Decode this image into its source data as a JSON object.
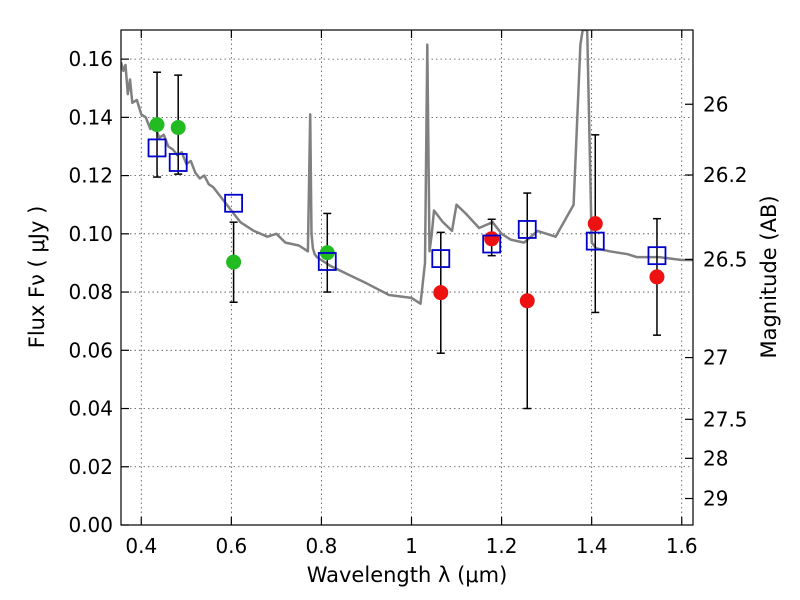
{
  "chart_data": {
    "type": "scatter",
    "xlabel": "Wavelength  λ (μm)",
    "ylabel_left": "Flux  Fν  ( μJy )",
    "ylabel_right": "Magnitude (AB)",
    "xlim": [
      0.355,
      1.625
    ],
    "ylim": [
      0.0,
      0.17
    ],
    "x_ticks": [
      0.4,
      0.6,
      0.8,
      1.0,
      1.2,
      1.4,
      1.6
    ],
    "x_tick_labels": [
      "0.4",
      "0.6",
      "0.8",
      "1",
      "1.2",
      "1.4",
      "1.6"
    ],
    "y_ticks": [
      0.0,
      0.02,
      0.04,
      0.06,
      0.08,
      0.1,
      0.12,
      0.14,
      0.16
    ],
    "y_tick_labels": [
      "0.00",
      "0.02",
      "0.04",
      "0.06",
      "0.08",
      "0.10",
      "0.12",
      "0.14",
      "0.16"
    ],
    "right_ticks": [
      {
        "label": "26",
        "flux": 0.1445
      },
      {
        "label": "26.2",
        "flux": 0.1202
      },
      {
        "label": "26.5",
        "flux": 0.0912
      },
      {
        "label": "27",
        "flux": 0.0575
      },
      {
        "label": "27.5",
        "flux": 0.0363
      },
      {
        "label": "28",
        "flux": 0.0229
      },
      {
        "label": "29",
        "flux": 0.0091
      }
    ],
    "grid": true,
    "colors": {
      "green": "#22bb22",
      "red": "#ee1111",
      "blue": "#0000cc",
      "model": "#808080",
      "errorbar": "#000000"
    },
    "model_spectrum": {
      "name": "template SED",
      "x": [
        0.355,
        0.36,
        0.365,
        0.37,
        0.375,
        0.38,
        0.39,
        0.4,
        0.41,
        0.42,
        0.43,
        0.44,
        0.45,
        0.46,
        0.47,
        0.48,
        0.49,
        0.5,
        0.51,
        0.52,
        0.53,
        0.54,
        0.55,
        0.56,
        0.58,
        0.6,
        0.62,
        0.65,
        0.68,
        0.7,
        0.72,
        0.75,
        0.77,
        0.775,
        0.778,
        0.781,
        0.785,
        0.79,
        0.82,
        0.86,
        0.9,
        0.95,
        1.0,
        1.02,
        1.03,
        1.035,
        1.04,
        1.045,
        1.05,
        1.07,
        1.09,
        1.1,
        1.12,
        1.15,
        1.18,
        1.2,
        1.22,
        1.25,
        1.28,
        1.32,
        1.36,
        1.375,
        1.38,
        1.383,
        1.386,
        1.39,
        1.4,
        1.41,
        1.44,
        1.48,
        1.5,
        1.55,
        1.6,
        1.625
      ],
      "y": [
        0.159,
        0.156,
        0.158,
        0.148,
        0.153,
        0.145,
        0.146,
        0.141,
        0.14,
        0.136,
        0.137,
        0.133,
        0.134,
        0.13,
        0.129,
        0.127,
        0.128,
        0.124,
        0.125,
        0.121,
        0.119,
        0.12,
        0.117,
        0.116,
        0.112,
        0.108,
        0.104,
        0.101,
        0.099,
        0.1,
        0.097,
        0.096,
        0.094,
        0.141,
        0.1,
        0.095,
        0.093,
        0.092,
        0.089,
        0.086,
        0.083,
        0.079,
        0.078,
        0.076,
        0.09,
        0.165,
        0.094,
        0.1,
        0.108,
        0.104,
        0.101,
        0.11,
        0.107,
        0.102,
        0.104,
        0.1,
        0.098,
        0.097,
        0.101,
        0.099,
        0.11,
        0.165,
        0.17,
        0.17,
        0.17,
        0.17,
        0.097,
        0.095,
        0.094,
        0.093,
        0.092,
        0.092,
        0.091,
        0.091
      ]
    },
    "series": [
      {
        "name": "green points",
        "marker": "circle",
        "points": [
          {
            "x": 0.435,
            "y": 0.1375
          },
          {
            "x": 0.482,
            "y": 0.1365
          },
          {
            "x": 0.605,
            "y": 0.0903
          },
          {
            "x": 0.813,
            "y": 0.0935
          }
        ]
      },
      {
        "name": "red points",
        "marker": "circle",
        "points": [
          {
            "x": 1.065,
            "y": 0.0798
          },
          {
            "x": 1.178,
            "y": 0.0983
          },
          {
            "x": 1.257,
            "y": 0.077
          },
          {
            "x": 1.408,
            "y": 0.1035
          },
          {
            "x": 1.545,
            "y": 0.0852
          }
        ]
      },
      {
        "name": "blue squares",
        "marker": "square",
        "points": [
          {
            "x": 0.435,
            "y": 0.1295
          },
          {
            "x": 0.482,
            "y": 0.1245
          },
          {
            "x": 0.605,
            "y": 0.1105
          },
          {
            "x": 0.813,
            "y": 0.0905
          },
          {
            "x": 1.065,
            "y": 0.0915
          },
          {
            "x": 1.178,
            "y": 0.0965
          },
          {
            "x": 1.257,
            "y": 0.1015
          },
          {
            "x": 1.408,
            "y": 0.0975
          },
          {
            "x": 1.545,
            "y": 0.0925
          }
        ]
      }
    ],
    "error_bars": [
      {
        "x": 0.435,
        "low": 0.1195,
        "high": 0.1555
      },
      {
        "x": 0.482,
        "low": 0.1205,
        "high": 0.1545
      },
      {
        "x": 0.605,
        "low": 0.0765,
        "high": 0.104
      },
      {
        "x": 0.813,
        "low": 0.08,
        "high": 0.107
      },
      {
        "x": 1.065,
        "low": 0.059,
        "high": 0.1005
      },
      {
        "x": 1.178,
        "low": 0.0925,
        "high": 0.105
      },
      {
        "x": 1.257,
        "low": 0.04,
        "high": 0.114
      },
      {
        "x": 1.408,
        "low": 0.073,
        "high": 0.134
      },
      {
        "x": 1.545,
        "low": 0.0652,
        "high": 0.1052
      }
    ]
  }
}
